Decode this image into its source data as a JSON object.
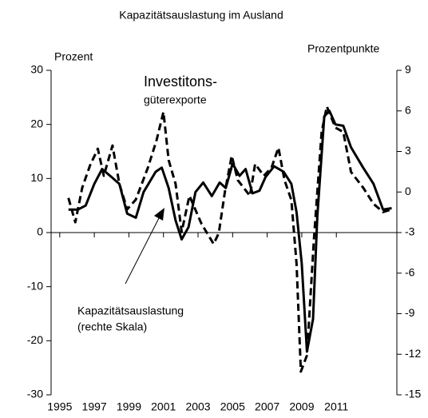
{
  "chart_data": {
    "type": "line",
    "title": "Kapazitätsauslastung im Ausland",
    "ylabel": "Prozent",
    "y2label": "Prozentpunkte",
    "xlim": [
      1994.5,
      2014.5
    ],
    "xticks": [
      1995,
      1997,
      1999,
      2001,
      2003,
      2005,
      2007,
      2009,
      2011
    ],
    "ylim": [
      -30,
      30
    ],
    "yticks": [
      -30,
      -20,
      -10,
      0,
      10,
      20,
      30
    ],
    "y2lim": [
      -15,
      9
    ],
    "y2ticks": [
      -15,
      -12,
      -9,
      -6,
      -3,
      0,
      3,
      6,
      9
    ],
    "annotations": [
      "Investitons-",
      "güterexporte",
      "Kapazitätsauslastung",
      "(rechte Skala)"
    ],
    "series": [
      {
        "color": "#000000",
        "dashed": true,
        "axis": "y",
        "x": [
          1995.5,
          1995.9,
          1996.3,
          1996.75,
          1997.2,
          1997.55,
          1998.05,
          1998.45,
          1998.9,
          1999.4,
          2000.1,
          2000.6,
          2001.0,
          2001.3,
          2001.7,
          2002.05,
          2002.5,
          2003.2,
          2003.9,
          2004.2,
          2004.55,
          2004.95,
          2005.3,
          2006.0,
          2006.3,
          2006.8,
          2007.25,
          2007.65,
          2008.0,
          2008.4,
          2008.7,
          2008.95,
          2009.3,
          2009.7,
          2010.15,
          2010.45,
          2010.95,
          2011.4,
          2011.85,
          2012.55,
          2013.15,
          2013.7,
          2014.2
        ],
        "values": [
          6.4,
          1.9,
          8.3,
          12.4,
          15.5,
          10.5,
          16.1,
          9.0,
          4.3,
          6.1,
          12.0,
          17.1,
          22.3,
          13.4,
          9.0,
          0.1,
          6.8,
          1.6,
          -2.1,
          -0.1,
          7.5,
          14.2,
          9.7,
          6.8,
          12.7,
          10.5,
          12.0,
          15.7,
          9.7,
          6.0,
          -5.8,
          -25.7,
          -22.7,
          -1.3,
          18.6,
          23.3,
          19.4,
          18.6,
          11.2,
          8.3,
          5.3,
          3.8,
          4.3
        ]
      },
      {
        "color": "#000000",
        "dashed": false,
        "axis": "y2",
        "x": [
          1995.5,
          1996.05,
          1996.5,
          1997.0,
          1997.45,
          1998.0,
          1998.45,
          1998.9,
          1999.4,
          1999.85,
          2000.55,
          2000.9,
          2001.3,
          2001.7,
          2002.05,
          2002.45,
          2002.85,
          2003.3,
          2003.8,
          2004.25,
          2004.6,
          2005.0,
          2005.4,
          2005.75,
          2006.15,
          2006.55,
          2006.9,
          2007.4,
          2007.95,
          2008.4,
          2008.7,
          2009.0,
          2009.3,
          2009.65,
          2009.9,
          2010.3,
          2010.6,
          2010.95,
          2011.4,
          2011.85,
          2012.55,
          2013.15,
          2013.7,
          2014.2
        ],
        "values": [
          -1.3,
          -1.3,
          -1.0,
          0.6,
          1.7,
          1.1,
          0.6,
          -1.6,
          -1.9,
          0.0,
          1.5,
          1.8,
          0.3,
          -2.1,
          -3.5,
          -2.6,
          0.0,
          0.7,
          -0.3,
          0.7,
          0.3,
          2.1,
          1.2,
          1.7,
          -0.1,
          0.1,
          1.1,
          1.9,
          1.5,
          0.6,
          -1.5,
          -5.3,
          -11.8,
          -9.4,
          -1.8,
          5.6,
          6.0,
          5.0,
          4.9,
          3.3,
          1.8,
          0.6,
          -1.3,
          -1.2
        ]
      }
    ]
  }
}
